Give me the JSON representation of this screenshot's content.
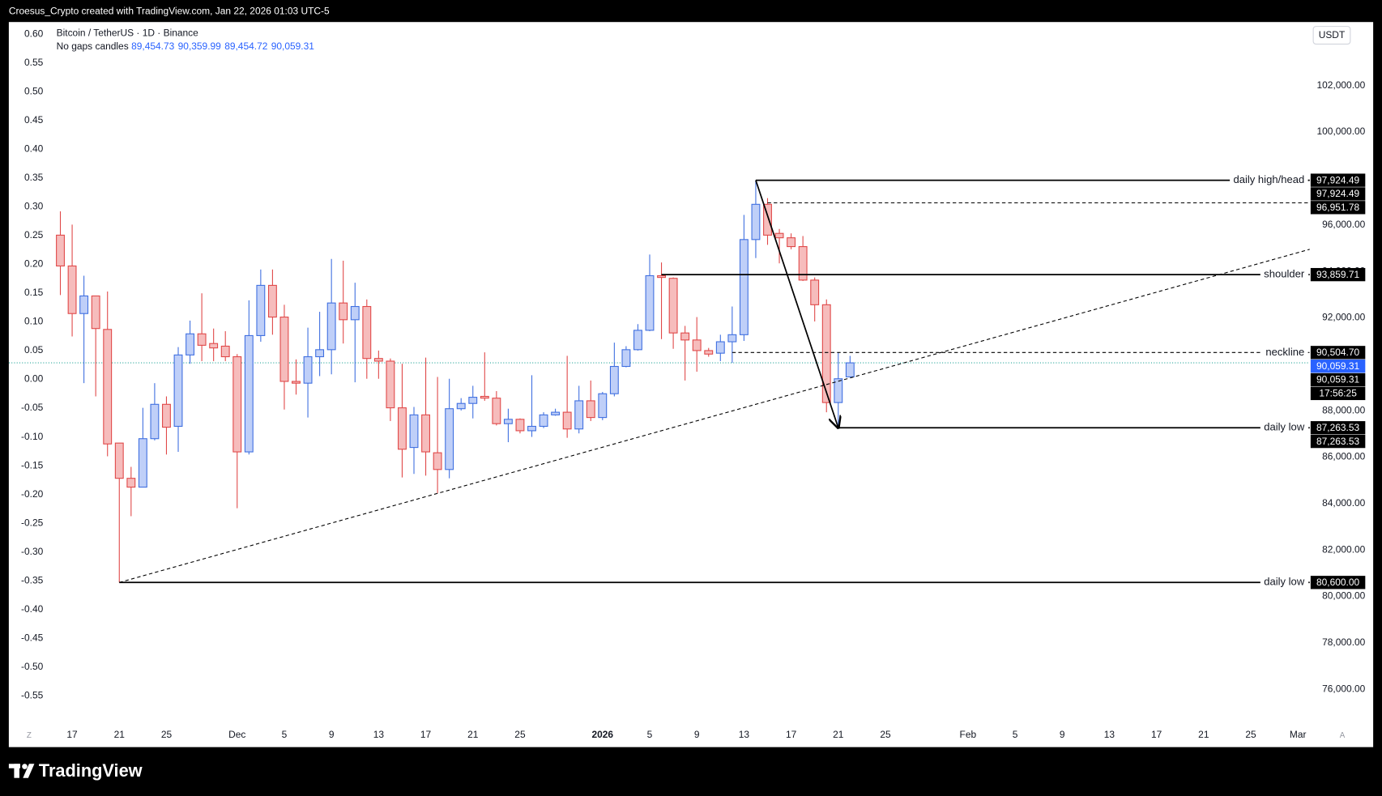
{
  "header": {
    "credit": "Croesus_Crypto created with TradingView.com, Jan 22, 2026 01:03 UTC-5",
    "brand": "TradingView"
  },
  "chart_data": {
    "type": "candlestick",
    "title": "Bitcoin / TetherUS · 1D · Binance",
    "subtitle": "No gaps candles",
    "legend_values": [
      "89,454.73",
      "90,359.99",
      "89,454.72",
      "90,059.31"
    ],
    "legend_color": "#2962ff",
    "currency": "USDT",
    "x": [
      "2025-11-16",
      "2025-11-17",
      "2025-11-18",
      "2025-11-19",
      "2025-11-20",
      "2025-11-21",
      "2025-11-22",
      "2025-11-23",
      "2025-11-24",
      "2025-11-25",
      "2025-11-26",
      "2025-11-27",
      "2025-11-28",
      "2025-11-29",
      "2025-11-30",
      "2025-12-01",
      "2025-12-02",
      "2025-12-03",
      "2025-12-04",
      "2025-12-05",
      "2025-12-06",
      "2025-12-07",
      "2025-12-08",
      "2025-12-09",
      "2025-12-10",
      "2025-12-11",
      "2025-12-12",
      "2025-12-13",
      "2025-12-14",
      "2025-12-15",
      "2025-12-16",
      "2025-12-17",
      "2025-12-18",
      "2025-12-19",
      "2025-12-20",
      "2025-12-21",
      "2025-12-22",
      "2025-12-23",
      "2025-12-24",
      "2025-12-25",
      "2025-12-26",
      "2025-12-27",
      "2025-12-28",
      "2025-12-29",
      "2025-12-30",
      "2025-12-31",
      "2026-01-01",
      "2026-01-02",
      "2026-01-03",
      "2026-01-04",
      "2026-01-05",
      "2026-01-06",
      "2026-01-07",
      "2026-01-08",
      "2026-01-09",
      "2026-01-10",
      "2026-01-11",
      "2026-01-12",
      "2026-01-13",
      "2026-01-14",
      "2026-01-15",
      "2026-01-16",
      "2026-01-17",
      "2026-01-18",
      "2026-01-19",
      "2026-01-20",
      "2026-01-21",
      "2026-01-22"
    ],
    "open": [
      95560,
      94232,
      92182,
      92941,
      91499,
      86604,
      85086,
      84706,
      86793,
      88273,
      87325,
      90399,
      91309,
      90892,
      90778,
      90323,
      86224,
      91233,
      93397,
      92031,
      89260,
      89184,
      90323,
      90626,
      92638,
      91917,
      92486,
      90247,
      90133,
      88122,
      86414,
      87818,
      86186,
      85465,
      88084,
      88311,
      88615,
      88539,
      87439,
      87628,
      87135,
      87325,
      87818,
      87932,
      87211,
      88425,
      87704,
      88729,
      89905,
      90626,
      91461,
      93814,
      93700,
      91347,
      91044,
      90588,
      90475,
      90968,
      91271,
      95370,
      96888,
      95636,
      95446,
      95066,
      93624,
      92562,
      88349,
      89454.73
    ],
    "high": [
      96585,
      96015,
      93814,
      92941,
      93131,
      86604,
      85579,
      88122,
      89184,
      88615,
      90740,
      91879,
      93055,
      91537,
      91423,
      90437,
      92752,
      94080,
      94080,
      92562,
      90209,
      91575,
      92258,
      94535,
      94459,
      93511,
      92790,
      90588,
      90247,
      90019,
      88160,
      90285,
      89450,
      89374,
      88539,
      89070,
      90512,
      88843,
      88084,
      87666,
      89526,
      87932,
      88084,
      90361,
      89070,
      89298,
      88805,
      90930,
      90778,
      91727,
      94725,
      94383,
      93738,
      91651,
      92031,
      90702,
      91271,
      92486,
      96433,
      97924.49,
      97154,
      95826,
      95636,
      95522,
      93738,
      92790,
      90512,
      90359.99
    ],
    "low": [
      92979,
      91196,
      89184,
      88615,
      86034,
      80600,
      83454,
      84706,
      86718,
      86110,
      86224,
      90019,
      90133,
      90133,
      90133,
      83795,
      86110,
      90968,
      91271,
      88046,
      88691,
      87704,
      89488,
      89564,
      90892,
      89222,
      89374,
      89374,
      87552,
      85124,
      85275,
      85200,
      84441,
      85086,
      88008,
      87666,
      88425,
      87363,
      86642,
      87021,
      86869,
      87249,
      87780,
      86831,
      87021,
      87552,
      87590,
      88615,
      89867,
      90588,
      91423,
      91082,
      90664,
      89298,
      89678,
      90323,
      90133,
      90057,
      91006,
      94573,
      95142,
      94345,
      94953,
      93586,
      91841,
      87932,
      87263.53,
      89454.72
    ],
    "close": [
      94232,
      92182,
      92941,
      91537,
      86566,
      85086,
      84706,
      86793,
      88273,
      87287,
      90399,
      91309,
      90816,
      90702,
      90323,
      86224,
      91233,
      93397,
      92031,
      89260,
      89184,
      90323,
      90626,
      92638,
      91917,
      92486,
      90247,
      90133,
      88122,
      86338,
      87818,
      86224,
      85465,
      88084,
      88311,
      88577,
      88539,
      87439,
      87628,
      87135,
      87325,
      87818,
      87932,
      87211,
      88425,
      87704,
      88729,
      89905,
      90626,
      91461,
      93814,
      93738,
      91347,
      91044,
      90588,
      90437,
      90968,
      91271,
      95370,
      96888,
      95560,
      95446,
      95066,
      93624,
      92562,
      88349,
      89374,
      90059.31
    ],
    "up_color": "#3f6fe0",
    "up_fill": "#bfcff8",
    "down_color": "#e04848",
    "down_fill": "#f6bcbc",
    "xlim": [
      "2025-11-12",
      "2026-03-02"
    ],
    "xticks": [
      {
        "value": "2025-11-17",
        "label": "17"
      },
      {
        "value": "2025-11-21",
        "label": "21"
      },
      {
        "value": "2025-11-25",
        "label": "25"
      },
      {
        "value": "2025-12-01",
        "label": "Dec"
      },
      {
        "value": "2025-12-05",
        "label": "5"
      },
      {
        "value": "2025-12-09",
        "label": "9"
      },
      {
        "value": "2025-12-13",
        "label": "13"
      },
      {
        "value": "2025-12-17",
        "label": "17"
      },
      {
        "value": "2025-12-21",
        "label": "21"
      },
      {
        "value": "2025-12-25",
        "label": "25"
      },
      {
        "value": "2026-01-01",
        "label": "2026",
        "strong": true
      },
      {
        "value": "2026-01-05",
        "label": "5"
      },
      {
        "value": "2026-01-09",
        "label": "9"
      },
      {
        "value": "2026-01-13",
        "label": "13"
      },
      {
        "value": "2026-01-17",
        "label": "17"
      },
      {
        "value": "2026-01-21",
        "label": "21"
      },
      {
        "value": "2026-01-25",
        "label": "25"
      },
      {
        "value": "2026-02-01",
        "label": "Feb"
      },
      {
        "value": "2026-02-05",
        "label": "5"
      },
      {
        "value": "2026-02-09",
        "label": "9"
      },
      {
        "value": "2026-02-13",
        "label": "13"
      },
      {
        "value": "2026-02-17",
        "label": "17"
      },
      {
        "value": "2026-02-21",
        "label": "21"
      },
      {
        "value": "2026-02-25",
        "label": "25"
      },
      {
        "value": "2026-03-01",
        "label": "Mar"
      }
    ],
    "ylim": [
      74570,
      104740
    ],
    "yticks": [
      {
        "value": 76000,
        "label": "76,000.00"
      },
      {
        "value": 78000,
        "label": "78,000.00"
      },
      {
        "value": 80000,
        "label": "80,000.00"
      },
      {
        "value": 82000,
        "label": "82,000.00"
      },
      {
        "value": 84000,
        "label": "84,000.00"
      },
      {
        "value": 86000,
        "label": "86,000.00"
      },
      {
        "value": 88000,
        "label": "88,000.00"
      },
      {
        "value": 90000,
        "label": "90,000.00"
      },
      {
        "value": 92000,
        "label": "92,000.00"
      },
      {
        "value": 94000,
        "label": "94,000.00"
      },
      {
        "value": 96000,
        "label": "96,000.00"
      },
      {
        "value": 98000,
        "label": "98,000.00"
      },
      {
        "value": 100000,
        "label": "100,000.00"
      },
      {
        "value": 102000,
        "label": "102,000.00"
      }
    ],
    "y2lim": [
      -0.596,
      0.621
    ],
    "y2ticks": [
      {
        "value": 0.6,
        "label": "0.60"
      },
      0.55,
      {
        "value": 0.5,
        "label": "0.50"
      },
      0.45,
      {
        "value": 0.4,
        "label": "0.40"
      },
      0.35,
      {
        "value": 0.3,
        "label": "0.30"
      },
      0.25,
      {
        "value": 0.2,
        "label": "0.20"
      },
      0.15,
      {
        "value": 0.1,
        "label": "0.10"
      },
      0.05,
      {
        "value": 0,
        "label": "0.00"
      },
      -0.05,
      {
        "value": -0.1,
        "label": "-0.10"
      },
      -0.15,
      {
        "value": -0.2,
        "label": "-0.20"
      },
      -0.25,
      {
        "value": -0.3,
        "label": "-0.30"
      },
      -0.35,
      {
        "value": -0.4,
        "label": "-0.40"
      },
      -0.45,
      {
        "value": -0.5,
        "label": "-0.50"
      },
      -0.55
    ],
    "annotations": [
      {
        "kind": "hline",
        "x_start": "2026-01-14",
        "y": 97924.49,
        "label": "daily high/head",
        "price_labels": [
          "97,924.49",
          "97,924.49"
        ]
      },
      {
        "kind": "hline",
        "x_start": "2026-01-15",
        "y": 96951.78,
        "dash": true,
        "price_labels": [
          "96,951.78"
        ]
      },
      {
        "kind": "hline",
        "x_start": "2026-01-06",
        "y": 93859.71,
        "label": "shoulder",
        "price_labels": [
          "93,859.71"
        ]
      },
      {
        "kind": "hline",
        "x_start": "2026-01-12",
        "y": 90504.7,
        "dash": true,
        "label": "neckline",
        "price_labels": [
          "90,504.70"
        ]
      },
      {
        "kind": "hline",
        "x_start": "2026-01-21",
        "y": 87263.53,
        "label": "daily low",
        "price_labels": [
          "87,263.53",
          "87,263.53"
        ]
      },
      {
        "kind": "hline",
        "x_start": "2025-11-21",
        "y": 80600,
        "label": "daily low",
        "price_labels": [
          "80,600.00"
        ]
      },
      {
        "kind": "trend",
        "x": [
          "2025-11-21",
          "2026-03-02"
        ],
        "y": [
          80600,
          94950
        ],
        "dash": true
      },
      {
        "kind": "arrow",
        "x": [
          "2026-01-14",
          "2026-01-21"
        ],
        "y": [
          97924.49,
          87263.53
        ]
      }
    ],
    "last_price": {
      "value": 90059.31,
      "labels": [
        "90,059.31",
        "90,059.31",
        "17:56:25"
      ],
      "color": "#2962ff",
      "line_color": "#26a69a"
    },
    "axis_buttons": [
      "Z",
      "A"
    ]
  }
}
